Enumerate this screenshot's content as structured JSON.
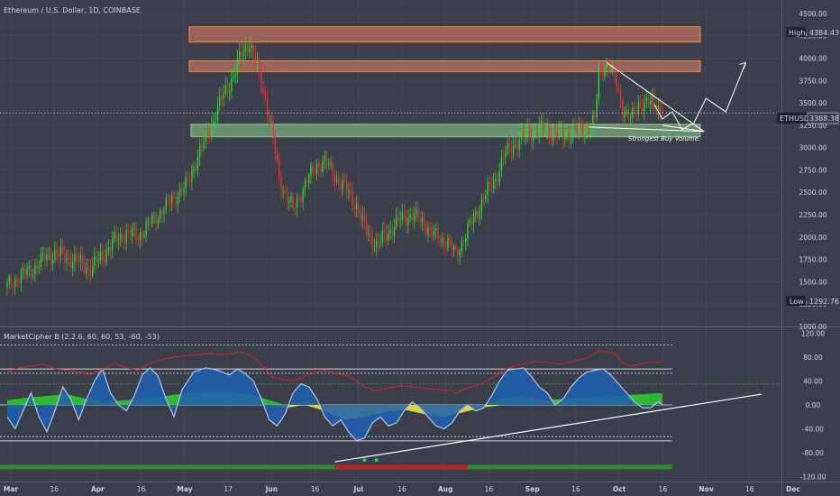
{
  "header": {
    "symbol_title": "Ethereum / U.S. Dollar, 1D, COINBASE",
    "indicator_title": "MarketCipher B (2.2.6, 60, 60, 53, -60, -53)"
  },
  "badges": {
    "high_label": "High",
    "high_value": "4384.43",
    "ticker_label": "ETHUSD",
    "ticker_value": "3388.38",
    "low_label": "Low",
    "low_value": "1292.76"
  },
  "annotation": {
    "text": "Strongest Buy Volume."
  },
  "colors": {
    "background": "#3b3f4b",
    "grid": "#464b57",
    "up": "#26d935",
    "down": "#e8322f",
    "resistance_zone": "#e8836a",
    "support_zone": "#8ed18e",
    "wave_blue": "#1e5fb4",
    "money_flow_green": "#2ec82e",
    "money_flow_yellow": "#f0e33a",
    "rsi_red": "#e0202f"
  },
  "chart_data": [
    {
      "type": "candlestick",
      "title": "Ethereum / U.S. Dollar, 1D, COINBASE",
      "y_ticks": [
        4500,
        4250,
        4000,
        3750,
        3500,
        3250,
        3000,
        2750,
        2500,
        2250,
        2000,
        1750,
        1500,
        1250,
        1000
      ],
      "y_tick_labels": [
        "4500.00",
        "4250.00",
        "4000.00",
        "3750.00",
        "3500.00",
        "3250.00",
        "3000.00",
        "2750.00",
        "2500.00",
        "2250.00",
        "2000.00",
        "1750.00",
        "1500.00",
        "1250.00",
        "1000.00"
      ],
      "ylim": [
        1000,
        4650
      ],
      "x_tick_labels": [
        "Mar",
        "16",
        "Apr",
        "16",
        "May",
        "17",
        "Jun",
        "16",
        "Jul",
        "16",
        "Aug",
        "16",
        "Sep",
        "16",
        "Oct",
        "16",
        "Nov",
        "16",
        "Dec"
      ],
      "last_price": 3388.38,
      "high": 4384.43,
      "low": 1292.76,
      "zones": [
        {
          "kind": "resistance",
          "from": 4180,
          "to": 4350
        },
        {
          "kind": "resistance",
          "from": 3850,
          "to": 3970
        },
        {
          "kind": "support",
          "from": 3120,
          "to": 3260
        }
      ],
      "close_path": [
        [
          0,
          1450
        ],
        [
          6,
          1560
        ],
        [
          12,
          1630
        ],
        [
          18,
          1750
        ],
        [
          24,
          1820
        ],
        [
          30,
          1760
        ],
        [
          36,
          1720
        ],
        [
          42,
          1640
        ],
        [
          48,
          1800
        ],
        [
          54,
          1950
        ],
        [
          60,
          2050
        ],
        [
          66,
          2010
        ],
        [
          72,
          2160
        ],
        [
          78,
          2300
        ],
        [
          84,
          2450
        ],
        [
          90,
          2560
        ],
        [
          96,
          2900
        ],
        [
          102,
          3200
        ],
        [
          108,
          3550
        ],
        [
          114,
          3800
        ],
        [
          118,
          4050
        ],
        [
          122,
          4180
        ],
        [
          126,
          3900
        ],
        [
          130,
          3550
        ],
        [
          134,
          3100
        ],
        [
          137,
          2650
        ],
        [
          140,
          2500
        ],
        [
          144,
          2300
        ],
        [
          150,
          2600
        ],
        [
          156,
          2800
        ],
        [
          160,
          2850
        ],
        [
          166,
          2650
        ],
        [
          172,
          2500
        ],
        [
          176,
          2350
        ],
        [
          180,
          2100
        ],
        [
          186,
          1900
        ],
        [
          192,
          2050
        ],
        [
          198,
          2200
        ],
        [
          204,
          2250
        ],
        [
          210,
          2150
        ],
        [
          216,
          2000
        ],
        [
          222,
          1950
        ],
        [
          226,
          1800
        ],
        [
          230,
          2000
        ],
        [
          236,
          2250
        ],
        [
          240,
          2450
        ],
        [
          246,
          2650
        ],
        [
          250,
          2900
        ],
        [
          256,
          3050
        ],
        [
          262,
          3150
        ],
        [
          268,
          3200
        ],
        [
          274,
          3170
        ],
        [
          280,
          3120
        ],
        [
          286,
          3200
        ],
        [
          292,
          3220
        ],
        [
          296,
          3300
        ],
        [
          298,
          3850
        ],
        [
          302,
          3950
        ],
        [
          306,
          3800
        ],
        [
          310,
          3450
        ],
        [
          314,
          3300
        ],
        [
          318,
          3500
        ],
        [
          322,
          3480
        ],
        [
          326,
          3520
        ],
        [
          330,
          3388
        ]
      ]
    },
    {
      "type": "line",
      "title": "MarketCipher B (2.2.6, 60, 60, 53, -60, -53)",
      "y_tick_labels": [
        "120.00",
        "80.00",
        "40.00",
        "0.00",
        "-40.00",
        "-80.00",
        "-120.00"
      ],
      "ylim": [
        -128,
        128
      ],
      "levels": [
        100,
        60,
        53,
        0,
        -53,
        -60
      ],
      "wave_trend": [
        [
          0,
          -20
        ],
        [
          4,
          -40
        ],
        [
          8,
          -10
        ],
        [
          12,
          20
        ],
        [
          16,
          -20
        ],
        [
          20,
          -45
        ],
        [
          24,
          -10
        ],
        [
          28,
          30
        ],
        [
          32,
          10
        ],
        [
          36,
          -25
        ],
        [
          40,
          10
        ],
        [
          44,
          40
        ],
        [
          48,
          60
        ],
        [
          52,
          20
        ],
        [
          56,
          0
        ],
        [
          60,
          -10
        ],
        [
          64,
          15
        ],
        [
          68,
          50
        ],
        [
          72,
          62
        ],
        [
          76,
          48
        ],
        [
          80,
          10
        ],
        [
          84,
          -20
        ],
        [
          88,
          25
        ],
        [
          94,
          55
        ],
        [
          100,
          62
        ],
        [
          106,
          58
        ],
        [
          112,
          50
        ],
        [
          116,
          60
        ],
        [
          120,
          52
        ],
        [
          124,
          40
        ],
        [
          128,
          10
        ],
        [
          132,
          -25
        ],
        [
          136,
          -35
        ],
        [
          140,
          -15
        ],
        [
          144,
          20
        ],
        [
          148,
          35
        ],
        [
          152,
          30
        ],
        [
          156,
          10
        ],
        [
          160,
          -20
        ],
        [
          164,
          -35
        ],
        [
          168,
          -25
        ],
        [
          172,
          -45
        ],
        [
          176,
          -60
        ],
        [
          180,
          -55
        ],
        [
          184,
          -30
        ],
        [
          188,
          -20
        ],
        [
          192,
          -35
        ],
        [
          196,
          -30
        ],
        [
          200,
          -10
        ],
        [
          204,
          5
        ],
        [
          208,
          -5
        ],
        [
          212,
          -20
        ],
        [
          216,
          -35
        ],
        [
          220,
          -40
        ],
        [
          224,
          -30
        ],
        [
          228,
          -10
        ],
        [
          232,
          0
        ],
        [
          236,
          -10
        ],
        [
          240,
          -5
        ],
        [
          244,
          15
        ],
        [
          248,
          40
        ],
        [
          252,
          58
        ],
        [
          256,
          60
        ],
        [
          260,
          62
        ],
        [
          264,
          48
        ],
        [
          268,
          30
        ],
        [
          272,
          20
        ],
        [
          276,
          0
        ],
        [
          280,
          10
        ],
        [
          284,
          30
        ],
        [
          288,
          45
        ],
        [
          292,
          55
        ],
        [
          296,
          58
        ],
        [
          300,
          60
        ],
        [
          304,
          50
        ],
        [
          308,
          35
        ],
        [
          312,
          20
        ],
        [
          316,
          5
        ],
        [
          320,
          -5
        ],
        [
          324,
          -5
        ],
        [
          328,
          5
        ],
        [
          330,
          0
        ]
      ],
      "money_flow": [
        [
          0,
          8
        ],
        [
          10,
          12
        ],
        [
          20,
          15
        ],
        [
          30,
          18
        ],
        [
          40,
          10
        ],
        [
          50,
          6
        ],
        [
          60,
          8
        ],
        [
          70,
          10
        ],
        [
          80,
          15
        ],
        [
          90,
          20
        ],
        [
          100,
          22
        ],
        [
          110,
          22
        ],
        [
          120,
          20
        ],
        [
          130,
          10
        ],
        [
          140,
          -5
        ],
        [
          150,
          5
        ],
        [
          160,
          -10
        ],
        [
          170,
          -25
        ],
        [
          180,
          -20
        ],
        [
          190,
          -12
        ],
        [
          200,
          -8
        ],
        [
          210,
          -15
        ],
        [
          220,
          -20
        ],
        [
          230,
          -12
        ],
        [
          240,
          -4
        ],
        [
          250,
          10
        ],
        [
          260,
          15
        ],
        [
          270,
          8
        ],
        [
          280,
          10
        ],
        [
          290,
          12
        ],
        [
          300,
          14
        ],
        [
          310,
          16
        ],
        [
          320,
          18
        ],
        [
          330,
          20
        ]
      ],
      "rsi_mfi": [
        [
          0,
          56
        ],
        [
          6,
          62
        ],
        [
          12,
          65
        ],
        [
          18,
          68
        ],
        [
          24,
          60
        ],
        [
          30,
          58
        ],
        [
          36,
          55
        ],
        [
          42,
          50
        ],
        [
          48,
          60
        ],
        [
          54,
          70
        ],
        [
          60,
          62
        ],
        [
          66,
          58
        ],
        [
          72,
          70
        ],
        [
          78,
          76
        ],
        [
          84,
          80
        ],
        [
          90,
          82
        ],
        [
          96,
          84
        ],
        [
          102,
          86
        ],
        [
          108,
          84
        ],
        [
          114,
          86
        ],
        [
          118,
          88
        ],
        [
          122,
          84
        ],
        [
          126,
          74
        ],
        [
          130,
          60
        ],
        [
          134,
          45
        ],
        [
          137,
          44
        ],
        [
          140,
          42
        ],
        [
          144,
          40
        ],
        [
          150,
          48
        ],
        [
          156,
          55
        ],
        [
          160,
          58
        ],
        [
          166,
          52
        ],
        [
          172,
          48
        ],
        [
          176,
          40
        ],
        [
          180,
          30
        ],
        [
          186,
          24
        ],
        [
          192,
          28
        ],
        [
          198,
          32
        ],
        [
          204,
          30
        ],
        [
          210,
          28
        ],
        [
          216,
          26
        ],
        [
          222,
          25
        ],
        [
          226,
          20
        ],
        [
          230,
          26
        ],
        [
          236,
          32
        ],
        [
          240,
          38
        ],
        [
          246,
          48
        ],
        [
          250,
          58
        ],
        [
          256,
          66
        ],
        [
          262,
          70
        ],
        [
          268,
          72
        ],
        [
          274,
          70
        ],
        [
          280,
          68
        ],
        [
          286,
          74
        ],
        [
          292,
          78
        ],
        [
          296,
          86
        ],
        [
          298,
          90
        ],
        [
          302,
          88
        ],
        [
          306,
          86
        ],
        [
          310,
          70
        ],
        [
          314,
          65
        ],
        [
          318,
          68
        ],
        [
          322,
          70
        ],
        [
          326,
          72
        ],
        [
          330,
          70
        ]
      ],
      "trendline": [
        [
          165,
          -95
        ],
        [
          380,
          18
        ]
      ]
    }
  ]
}
